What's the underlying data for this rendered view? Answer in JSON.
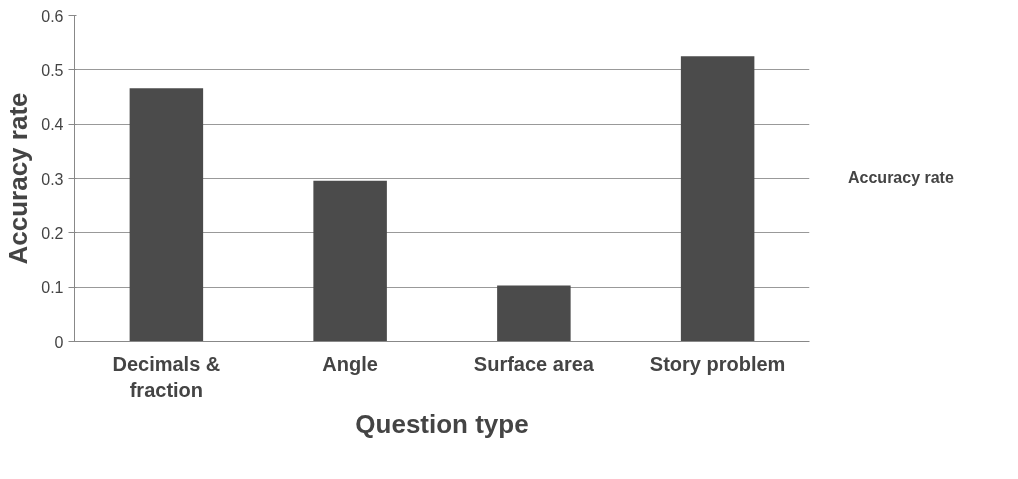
{
  "chart_data": {
    "type": "bar",
    "xlabel": "Question type",
    "ylabel": "Accuracy rate",
    "categories": [
      "Decimals & fraction",
      "Angle",
      "Surface area",
      "Story problem"
    ],
    "series": [
      {
        "name": "Accuracy rate",
        "color": "#4b4b4b",
        "values": [
          0.466,
          0.296,
          0.103,
          0.525
        ]
      }
    ],
    "ylim": [
      0,
      0.6
    ],
    "yticks": [
      0,
      0.1,
      0.2,
      0.3,
      0.4,
      0.5,
      0.6
    ],
    "grid": "y",
    "legend": "right"
  }
}
